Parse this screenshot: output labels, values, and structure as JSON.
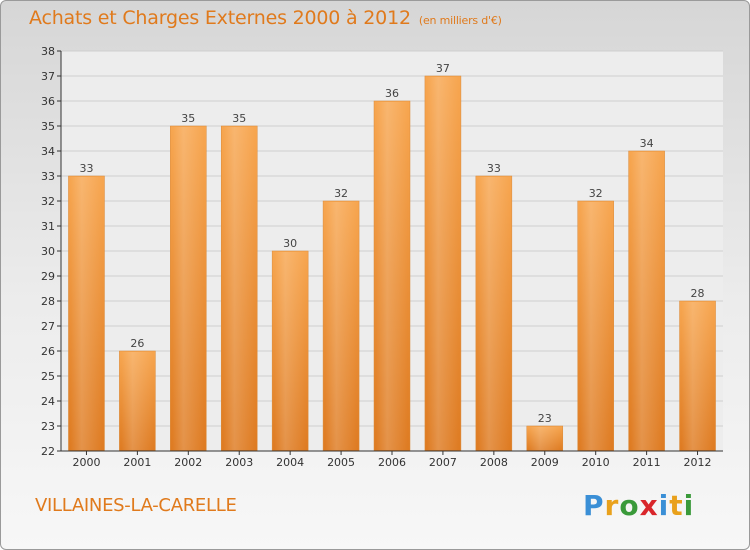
{
  "title": "Achats et Charges Externes 2000 à 2012",
  "unit": "(en milliers d'€)",
  "city": "VILLAINES-LA-CARELLE",
  "logo": "Proxiti",
  "colors": {
    "bar_light": "#f6a24e",
    "bar_dark": "#e07f26",
    "text_accent": "#e07a1c",
    "axis": "#333333",
    "grid": "#c8c8c8"
  },
  "chart_data": {
    "type": "bar",
    "categories": [
      "2000",
      "2001",
      "2002",
      "2003",
      "2004",
      "2005",
      "2006",
      "2007",
      "2008",
      "2009",
      "2010",
      "2011",
      "2012"
    ],
    "values": [
      33,
      26,
      35,
      35,
      30,
      32,
      36,
      37,
      33,
      23,
      32,
      34,
      28
    ],
    "ylim": [
      22,
      38
    ],
    "yticks": [
      22,
      23,
      24,
      25,
      26,
      27,
      28,
      29,
      30,
      31,
      32,
      33,
      34,
      35,
      36,
      37,
      38
    ],
    "grid": true,
    "data_labels": true
  }
}
